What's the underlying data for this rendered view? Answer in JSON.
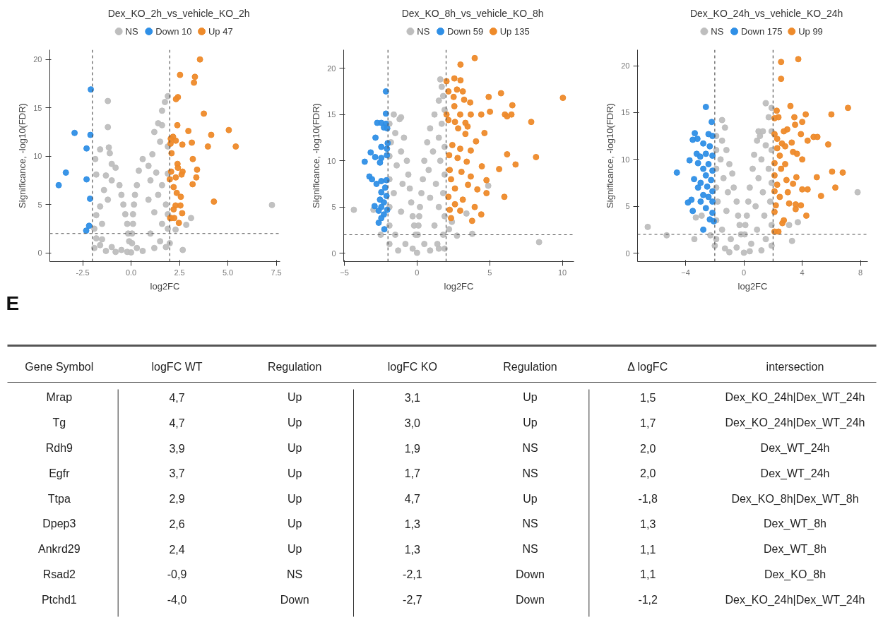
{
  "chart_data": [
    {
      "type": "scatter",
      "title": "Dex_KO_2h_vs_vehicle_KO_2h",
      "xlabel": "log2FC",
      "ylabel": "Significance, -log10(FDR)",
      "legend": "top",
      "grid": false,
      "marker": "circle",
      "xlim": [
        -4.2,
        7.7
      ],
      "ylim": [
        -0.9,
        21
      ],
      "xticks": [
        {
          "value": -2.5,
          "label": "-2.5"
        },
        {
          "value": 0,
          "label": "0.0"
        },
        {
          "value": 2.5,
          "label": "2.5"
        },
        {
          "value": 5,
          "label": "5.0"
        },
        {
          "value": 7.5,
          "label": "7.5"
        }
      ],
      "yticks": [
        0,
        5,
        10,
        15,
        20
      ],
      "ref_lines": [
        {
          "axis": "x",
          "value": -2,
          "line_style": "dashed",
          "color": "#555555"
        },
        {
          "axis": "x",
          "value": 2,
          "line_style": "dashed",
          "color": "#555555"
        },
        {
          "axis": "y",
          "value": 2,
          "line_style": "dashed",
          "color": "#555555"
        }
      ],
      "series": [
        {
          "name": "NS",
          "color": "#bebebe",
          "x": [
            -1.2,
            -1.2,
            -1.6,
            -1.15,
            -1.1,
            -1.85,
            -1.8,
            7.28,
            2.67,
            3.1,
            2.85,
            -1.5,
            -1.9,
            1.4,
            1.6,
            1.9,
            1.75,
            1.6,
            1.2,
            1.5,
            1.9,
            1.1,
            0.6,
            0.9,
            1.3,
            1.9,
            -1.0,
            -0.8,
            -1.3,
            -1.0,
            -0.6,
            -1.4,
            -0.5,
            -1.2,
            -0.4,
            -1.6,
            -0.3,
            -1.8,
            -1.5,
            -0.2,
            -1.9,
            -0.15,
            -1.8,
            -0.1,
            -1.6,
            -1.0,
            -0.5,
            -1.3,
            -0.8,
            -0.2,
            0.4,
            1.0,
            0.3,
            1.6,
            0.2,
            1.4,
            0.9,
            0.15,
            1.8,
            0.1,
            1.2,
            1.9,
            0.1,
            1.6,
            0.05,
            1.9,
            1.0,
            0.05,
            1.5,
            0.3,
            1.2,
            0.6,
            1.8,
            0.0,
            2.3,
            2.0
          ],
          "values": [
            15.7,
            13.0,
            10.7,
            10.9,
            10.3,
            9.7,
            8.1,
            4.95,
            0.3,
            3.6,
            2.9,
            1.4,
            0.5,
            13.4,
            13.2,
            16.2,
            15.6,
            14.7,
            12.5,
            11.5,
            11.0,
            10.2,
            9.7,
            9.0,
            8.3,
            8.2,
            9.2,
            8.8,
            8.0,
            7.5,
            7.0,
            6.5,
            6.0,
            5.5,
            5.0,
            4.8,
            4.0,
            3.9,
            3.0,
            3.0,
            2.5,
            2.0,
            1.5,
            1.2,
            0.8,
            0.6,
            0.3,
            0.2,
            0.1,
            0.1,
            8.5,
            7.5,
            7.0,
            7.0,
            6.0,
            6.0,
            5.5,
            5.0,
            5.0,
            4.0,
            4.2,
            4.0,
            3.0,
            3.0,
            2.0,
            2.5,
            2.0,
            1.0,
            1.2,
            0.5,
            0.5,
            0.2,
            0.6,
            0.05,
            2.4,
            1.0
          ]
        },
        {
          "name": "Down 10",
          "color": "#2f8fe6",
          "x": [
            -2.08,
            -2.92,
            -2.1,
            -2.3,
            -3.37,
            -3.74,
            -2.3,
            -2.12,
            -2.17,
            -2.32
          ],
          "values": [
            16.9,
            12.4,
            12.2,
            10.8,
            8.3,
            7.0,
            7.6,
            5.6,
            2.8,
            2.3
          ]
        },
        {
          "name": "Up 47",
          "color": "#ee8a2a",
          "x": [
            3.56,
            2.53,
            3.3,
            3.25,
            2.42,
            2.32,
            3.76,
            2.39,
            2.96,
            5.05,
            4.14,
            2.17,
            2.05,
            2.31,
            2.04,
            3.14,
            2.65,
            3.97,
            5.41,
            2.09,
            3.19,
            2.4,
            2.42,
            2.66,
            3.41,
            2.07,
            2.61,
            2.31,
            3.37,
            2.0,
            3.18,
            2.2,
            2.36,
            2.57,
            4.28,
            2.3,
            2.55,
            2.2,
            2.64,
            2.02,
            2.09,
            2.23,
            2.47
          ],
          "values": [
            20.0,
            18.4,
            18.2,
            17.6,
            16.1,
            15.9,
            14.4,
            13.2,
            12.6,
            12.7,
            12.2,
            12.0,
            11.8,
            11.6,
            11.3,
            11.4,
            11.2,
            11.0,
            11.0,
            10.3,
            9.7,
            9.2,
            8.8,
            8.4,
            8.6,
            8.4,
            8.1,
            7.8,
            7.8,
            7.6,
            7.1,
            6.8,
            6.2,
            5.8,
            5.3,
            4.9,
            4.9,
            4.5,
            4.1,
            3.6,
            3.6,
            3.6,
            3.1
          ]
        }
      ]
    },
    {
      "type": "scatter",
      "title": "Dex_KO_8h_vs_vehicle_KO_8h",
      "xlabel": "log2FC",
      "ylabel": "Significance, -log10(FDR)",
      "legend": "top",
      "grid": false,
      "marker": "circle",
      "xlim": [
        -5.05,
        10.8
      ],
      "ylim": [
        -0.9,
        22
      ],
      "xticks": [
        -5,
        0,
        5,
        10
      ],
      "yticks": [
        0,
        5,
        10,
        15,
        20
      ],
      "ref_lines": [
        {
          "axis": "x",
          "value": -2,
          "line_style": "dashed",
          "color": "#555555"
        },
        {
          "axis": "x",
          "value": 2,
          "line_style": "dashed",
          "color": "#555555"
        },
        {
          "axis": "y",
          "value": 2,
          "line_style": "dashed",
          "color": "#555555"
        }
      ],
      "series": [
        {
          "name": "NS",
          "color": "#bebebe",
          "x": [
            1.6,
            -1.6,
            -1.1,
            -1.9,
            -1.2,
            -1.5,
            -0.9,
            -1.8,
            -1.1,
            -1.9,
            -0.7,
            -1.4,
            -0.6,
            -1.9,
            -1.0,
            -0.5,
            -1.6,
            -0.4,
            -1.9,
            -1.1,
            -0.3,
            -1.9,
            -0.2,
            -1.5,
            -0.1,
            -1.9,
            -0.8,
            -1.3,
            -0.3,
            0.0,
            1.7,
            1.8,
            1.5,
            1.9,
            1.2,
            1.7,
            0.9,
            1.5,
            0.7,
            1.9,
            1.1,
            0.5,
            1.6,
            0.8,
            1.9,
            0.4,
            1.3,
            0.3,
            1.8,
            0.9,
            0.2,
            1.5,
            0.15,
            1.9,
            0.1,
            1.2,
            0.05,
            1.8,
            0.5,
            1.4,
            0.9,
            1.9,
            -2.5,
            -3.0,
            -4.35,
            8.4,
            3.8,
            2.75,
            2.4,
            2.2,
            1.5,
            4.9,
            3.4
          ],
          "values": [
            18.8,
            15.0,
            14.7,
            14.0,
            14.5,
            13.0,
            12.5,
            12.0,
            11.0,
            10.5,
            10.0,
            9.5,
            8.5,
            8.0,
            7.5,
            7.0,
            6.5,
            5.5,
            5.0,
            4.5,
            4.0,
            3.0,
            3.0,
            2.0,
            2.0,
            1.0,
            1.0,
            0.3,
            0.5,
            0.05,
            18.0,
            17.0,
            16.5,
            15.5,
            15.0,
            14.0,
            13.5,
            12.5,
            12.0,
            11.5,
            11.0,
            10.0,
            10.0,
            9.0,
            8.5,
            8.0,
            7.5,
            6.5,
            6.5,
            6.0,
            5.0,
            5.0,
            4.0,
            4.0,
            3.0,
            3.0,
            2.0,
            2.0,
            1.0,
            1.0,
            0.3,
            0.5,
            2.0,
            4.7,
            4.7,
            1.2,
            2.1,
            1.9,
            3.4,
            2.6,
            0.5,
            7.3,
            4.3
          ]
        },
        {
          "name": "Down 59",
          "color": "#2f8fe6",
          "x": [
            -2.14,
            -2.14,
            -2.74,
            -2.46,
            -2.14,
            -2.28,
            -2.05,
            -2.86,
            -2.02,
            -2.46,
            -2.07,
            -3.19,
            -2.88,
            -2.46,
            -3.6,
            -2.55,
            -2.07,
            -3.28,
            -3.1,
            -2.46,
            -2.1,
            -2.79,
            -2.19,
            -2.46,
            -2.1,
            -2.55,
            -2.28,
            -2.92,
            -2.46,
            -2.05,
            -2.64,
            -2.28,
            -2.46,
            -2.64,
            -2.25
          ],
          "values": [
            17.5,
            15.1,
            14.1,
            14.1,
            14.0,
            13.6,
            13.5,
            12.5,
            11.9,
            11.5,
            11.3,
            10.9,
            10.4,
            10.3,
            9.9,
            9.8,
            10.6,
            8.3,
            8.0,
            7.8,
            7.9,
            7.5,
            7.1,
            6.6,
            6.2,
            5.8,
            5.5,
            5.1,
            5.0,
            4.7,
            4.6,
            4.2,
            3.8,
            3.3,
            2.6
          ]
        },
        {
          "name": "Up 135",
          "color": "#ee8a2a",
          "x": [
            3.97,
            2.99,
            2.03,
            2.57,
            2.99,
            2.75,
            2.16,
            3.15,
            5.78,
            10.04,
            4.93,
            2.52,
            3.24,
            3.66,
            6.56,
            2.57,
            2.03,
            2.97,
            3.7,
            4.42,
            5.02,
            6.05,
            6.5,
            6.2,
            7.86,
            2.16,
            2.61,
            3.33,
            2.83,
            3.48,
            4.64,
            3.33,
            4.06,
            2.43,
            2.97,
            3.7,
            2.21,
            6.2,
            8.19,
            2.79,
            3.42,
            6.78,
            4.46,
            5.65,
            2.25,
            3.06,
            3.7,
            2.34,
            4.78,
            3.51,
            2.61,
            4.15,
            4.78,
            2.16,
            6.01,
            3.15,
            2.61,
            3.97,
            2.25,
            2.97,
            4.42,
            2.34,
            3.79
          ],
          "values": [
            21.1,
            20.4,
            18.6,
            18.9,
            18.7,
            17.7,
            17.5,
            17.5,
            17.3,
            16.8,
            16.9,
            16.9,
            16.6,
            16.3,
            16.0,
            15.9,
            15.0,
            15.0,
            15.0,
            15.0,
            15.3,
            15.0,
            15.0,
            14.8,
            14.2,
            14.4,
            14.2,
            14.1,
            13.5,
            13.7,
            13.0,
            12.9,
            12.1,
            11.7,
            11.3,
            11.1,
            10.6,
            10.7,
            10.4,
            10.3,
            9.9,
            9.6,
            9.4,
            9.1,
            9.0,
            8.8,
            8.3,
            8.0,
            7.9,
            7.4,
            7.0,
            6.9,
            6.5,
            6.1,
            6.1,
            5.8,
            5.3,
            5.0,
            4.7,
            4.6,
            4.2,
            3.8,
            3.5
          ]
        }
      ]
    },
    {
      "type": "scatter",
      "title": "Dex_KO_24h_vs_vehicle_KO_24h",
      "xlabel": "log2FC",
      "ylabel": "Significance, -log10(FDR)",
      "legend": "top",
      "grid": false,
      "marker": "circle",
      "xlim": [
        -7.3,
        8.5
      ],
      "ylim": [
        -0.9,
        21.7
      ],
      "xticks": [
        -4,
        0,
        4,
        8
      ],
      "yticks": [
        0,
        5,
        10,
        15,
        20
      ],
      "ref_lines": [
        {
          "axis": "x",
          "value": -2,
          "line_style": "dashed",
          "color": "#555555"
        },
        {
          "axis": "x",
          "value": 2,
          "line_style": "dashed",
          "color": "#555555"
        },
        {
          "axis": "y",
          "value": 2,
          "line_style": "dashed",
          "color": "#555555"
        }
      ],
      "series": [
        {
          "name": "NS",
          "color": "#bebebe",
          "x": [
            -6.6,
            -5.3,
            -3.4,
            -3.3,
            -2.9,
            -2.3,
            3.3,
            3.7,
            3.1,
            7.8,
            1.5,
            -1.5,
            -1.3,
            1.0,
            1.1,
            -1.9,
            -1.5,
            -1.9,
            -1.2,
            -1.6,
            -1.0,
            -1.9,
            -0.8,
            -1.4,
            -0.7,
            -1.9,
            -1.1,
            -0.5,
            -1.8,
            -1.2,
            -0.4,
            -1.9,
            -0.3,
            -1.5,
            -0.2,
            -1.9,
            -0.9,
            -2.0,
            -1.3,
            -0.5,
            -1.0,
            0.0,
            1.9,
            1.7,
            1.3,
            1.9,
            0.9,
            1.5,
            0.7,
            1.9,
            1.2,
            0.6,
            1.7,
            1.0,
            0.4,
            1.9,
            1.3,
            0.3,
            1.8,
            0.8,
            0.2,
            1.4,
            0.1,
            1.9,
            0.9,
            0.05,
            1.5,
            0.5,
            1.9,
            1.2,
            0.4
          ],
          "values": [
            2.8,
            1.9,
            1.5,
            3.8,
            4.0,
            1.9,
            1.3,
            3.3,
            3.0,
            6.5,
            16.0,
            14.2,
            13.4,
            13.0,
            12.5,
            12.5,
            12.0,
            11.0,
            11.0,
            10.0,
            9.5,
            9.0,
            8.5,
            8.0,
            7.0,
            7.0,
            6.5,
            5.5,
            5.5,
            4.5,
            4.0,
            3.5,
            3.0,
            2.5,
            2.0,
            1.5,
            1.5,
            0.8,
            0.5,
            0.6,
            0.1,
            0.05,
            15.5,
            14.5,
            13.0,
            13.0,
            12.0,
            11.5,
            10.5,
            11.0,
            10.0,
            9.0,
            9.0,
            8.0,
            7.0,
            7.5,
            6.5,
            5.5,
            5.5,
            5.0,
            4.0,
            4.0,
            3.0,
            3.0,
            2.5,
            2.0,
            1.5,
            1.0,
            0.8,
            0.3,
            0.2
          ]
        },
        {
          "name": "Down 175",
          "color": "#2f8fe6",
          "x": [
            -2.61,
            -2.21,
            -3.37,
            -3.51,
            -3.19,
            -2.43,
            -2.16,
            -2.79,
            -2.34,
            -3.24,
            -2.61,
            -2.16,
            -3.0,
            -3.73,
            -3.15,
            -2.43,
            -2.79,
            -2.16,
            -4.6,
            -2.61,
            -3.42,
            -2.25,
            -2.97,
            -2.52,
            -3.15,
            -2.16,
            -2.79,
            -2.43,
            -3.6,
            -3.84,
            -2.97,
            -2.16,
            -2.61,
            -3.51,
            -2.16,
            -2.34,
            -2.07,
            -2.79
          ],
          "values": [
            15.6,
            14.0,
            12.8,
            12.1,
            12.2,
            12.7,
            12.5,
            11.7,
            11.4,
            10.6,
            10.6,
            10.4,
            10.3,
            9.9,
            9.6,
            9.5,
            9.0,
            8.8,
            8.6,
            8.3,
            7.9,
            7.8,
            7.5,
            7.1,
            7.0,
            6.6,
            6.2,
            6.0,
            5.7,
            5.4,
            5.5,
            5.5,
            4.8,
            4.5,
            4.3,
            3.6,
            3.4,
            2.5
          ]
        },
        {
          "name": "Up 99",
          "color": "#ee8a2a",
          "x": [
            3.73,
            2.55,
            2.55,
            7.14,
            3.19,
            2.25,
            6.0,
            4.24,
            3.46,
            2.1,
            2.37,
            4.0,
            3.51,
            2.97,
            2.74,
            3.91,
            4.78,
            5.04,
            2.1,
            2.28,
            3.28,
            4.37,
            2.61,
            5.78,
            2.83,
            2.28,
            3.37,
            3.64,
            2.46,
            4.0,
            2.1,
            2.83,
            2.55,
            6.05,
            6.78,
            5.0,
            3.6,
            2.1,
            2.92,
            3.37,
            2.28,
            6.27,
            4.0,
            4.37,
            3.01,
            2.1,
            5.29,
            2.46,
            3.1,
            3.55,
            3.91,
            2.19,
            3.55,
            2.1,
            4.28,
            2.74,
            2.64,
            2.1,
            2.37
          ],
          "values": [
            20.7,
            20.4,
            18.6,
            15.5,
            15.7,
            15.2,
            14.8,
            14.8,
            14.5,
            14.4,
            14.5,
            14.0,
            13.7,
            13.2,
            13.0,
            12.7,
            12.4,
            12.4,
            12.7,
            12.2,
            11.8,
            12.0,
            11.7,
            11.6,
            11.4,
            11.2,
            10.8,
            10.6,
            10.4,
            10.0,
            9.6,
            9.5,
            9.0,
            8.7,
            8.6,
            8.1,
            8.1,
            8.3,
            7.8,
            7.4,
            7.3,
            7.0,
            6.8,
            6.8,
            6.5,
            6.6,
            6.1,
            6.0,
            5.3,
            5.2,
            5.1,
            5.1,
            4.7,
            4.4,
            4.0,
            3.5,
            3.2,
            2.3,
            2.3
          ]
        }
      ]
    },
    {
      "type": "other",
      "title": "E",
      "categories": [
        "Gene Symbol",
        "logFC WT",
        "Regulation",
        "logFC KO",
        "Regulation",
        "Δ logFC",
        "intersection"
      ],
      "annotations": [
        "Mrap",
        "4,7",
        "Up",
        "3,1",
        "Up",
        "1,5",
        "Dex_KO_24h|Dex_WT_24h",
        "Tg",
        "4,7",
        "Up",
        "3,0",
        "Up",
        "1,7",
        "Dex_KO_24h|Dex_WT_24h",
        "Rdh9",
        "3,9",
        "Up",
        "1,9",
        "NS",
        "2,0",
        "Dex_WT_24h",
        "Egfr",
        "3,7",
        "Up",
        "1,7",
        "NS",
        "2,0",
        "Dex_WT_24h",
        "Ttpa",
        "2,9",
        "Up",
        "4,7",
        "Up",
        "-1,8",
        "Dex_KO_8h|Dex_WT_8h",
        "Dpep3",
        "2,6",
        "Up",
        "1,3",
        "NS",
        "1,3",
        "Dex_WT_8h",
        "Ankrd29",
        "2,4",
        "Up",
        "1,3",
        "NS",
        "1,1",
        "Dex_WT_8h",
        "Rsad2",
        "-0,9",
        "NS",
        "-2,1",
        "Down",
        "1,1",
        "Dex_KO_8h",
        "Ptchd1",
        "-4,0",
        "Down",
        "-2,7",
        "Down",
        "-1,2",
        "Dex_KO_24h|Dex_WT_24h"
      ]
    }
  ]
}
